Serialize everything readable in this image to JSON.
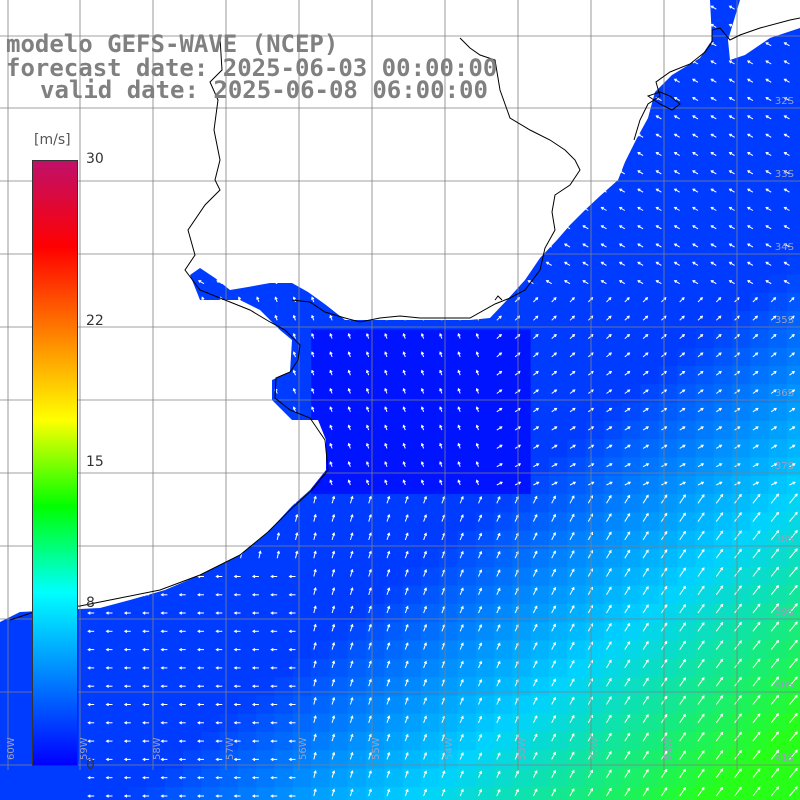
{
  "title": {
    "line1": "modelo GEFS-WAVE (NCEP)",
    "line2": "forecast date: 2025-06-03 00:00:00",
    "line3": "valid date: 2025-06-08 06:00:00"
  },
  "colorbar": {
    "unit": "[m/s]",
    "ticks": [
      "30",
      "22",
      "15",
      "8",
      "0"
    ],
    "tick_values": [
      30,
      22,
      15,
      8,
      0
    ],
    "min": 0,
    "max": 30,
    "colors": [
      "#0000ff",
      "#0080ff",
      "#00ffff",
      "#00ff00",
      "#ffff00",
      "#ff8000",
      "#ff0000",
      "#c0106a"
    ]
  },
  "map": {
    "land_color": "#ffffff",
    "coast_color": "#000000",
    "grid_color": "#808080",
    "lat_labels": [
      "32S",
      "33S",
      "34S",
      "35S",
      "36S",
      "37S",
      "38S",
      "39S",
      "40S",
      "41S"
    ],
    "lon_labels": [
      "60W",
      "59W",
      "58W",
      "57W",
      "56W",
      "55W",
      "54W",
      "53W",
      "52W",
      "51W"
    ]
  }
}
